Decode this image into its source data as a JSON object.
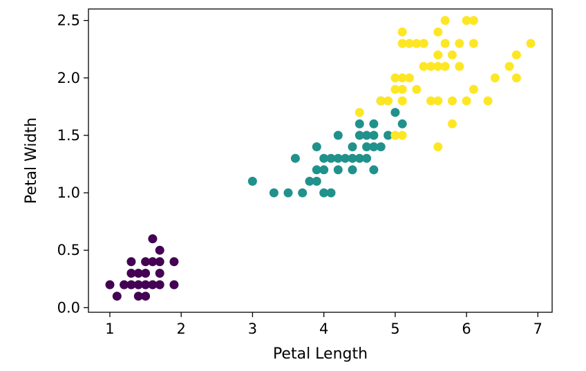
{
  "chart_data": {
    "type": "scatter",
    "title": "",
    "xlabel": "Petal Length",
    "ylabel": "Petal Width",
    "xlim": [
      0.7,
      7.2
    ],
    "ylim": [
      -0.04,
      2.6
    ],
    "x_ticks": [
      1,
      2,
      3,
      4,
      5,
      6,
      7
    ],
    "x_tick_labels": [
      "1",
      "2",
      "3",
      "4",
      "5",
      "6",
      "7"
    ],
    "y_ticks": [
      0.0,
      0.5,
      1.0,
      1.5,
      2.0,
      2.5
    ],
    "y_tick_labels": [
      "0.0",
      "0.5",
      "1.0",
      "1.5",
      "2.0",
      "2.5"
    ],
    "grid": false,
    "legend": "none",
    "series": [
      {
        "color": "#440154",
        "points": [
          [
            1.0,
            0.2
          ],
          [
            1.1,
            0.1
          ],
          [
            1.2,
            0.2
          ],
          [
            1.3,
            0.2
          ],
          [
            1.3,
            0.3
          ],
          [
            1.3,
            0.4
          ],
          [
            1.4,
            0.2
          ],
          [
            1.4,
            0.3
          ],
          [
            1.4,
            0.1
          ],
          [
            1.5,
            0.2
          ],
          [
            1.5,
            0.1
          ],
          [
            1.5,
            0.3
          ],
          [
            1.5,
            0.4
          ],
          [
            1.6,
            0.2
          ],
          [
            1.6,
            0.4
          ],
          [
            1.6,
            0.6
          ],
          [
            1.7,
            0.2
          ],
          [
            1.7,
            0.3
          ],
          [
            1.7,
            0.4
          ],
          [
            1.7,
            0.5
          ],
          [
            1.9,
            0.2
          ],
          [
            1.9,
            0.4
          ]
        ]
      },
      {
        "color": "#21918c",
        "points": [
          [
            3.0,
            1.1
          ],
          [
            3.3,
            1.0
          ],
          [
            3.5,
            1.0
          ],
          [
            3.6,
            1.3
          ],
          [
            3.7,
            1.0
          ],
          [
            3.8,
            1.1
          ],
          [
            3.9,
            1.1
          ],
          [
            3.9,
            1.2
          ],
          [
            3.9,
            1.4
          ],
          [
            4.0,
            1.0
          ],
          [
            4.0,
            1.2
          ],
          [
            4.0,
            1.3
          ],
          [
            4.1,
            1.0
          ],
          [
            4.1,
            1.3
          ],
          [
            4.2,
            1.2
          ],
          [
            4.2,
            1.3
          ],
          [
            4.2,
            1.5
          ],
          [
            4.3,
            1.3
          ],
          [
            4.4,
            1.2
          ],
          [
            4.4,
            1.3
          ],
          [
            4.4,
            1.4
          ],
          [
            4.5,
            1.3
          ],
          [
            4.5,
            1.5
          ],
          [
            4.5,
            1.6
          ],
          [
            4.6,
            1.3
          ],
          [
            4.6,
            1.4
          ],
          [
            4.6,
            1.5
          ],
          [
            4.7,
            1.2
          ],
          [
            4.7,
            1.4
          ],
          [
            4.7,
            1.5
          ],
          [
            4.7,
            1.6
          ],
          [
            4.8,
            1.4
          ],
          [
            4.8,
            1.8
          ],
          [
            4.9,
            1.5
          ],
          [
            5.0,
            1.7
          ],
          [
            5.1,
            1.6
          ]
        ]
      },
      {
        "color": "#fde725",
        "points": [
          [
            4.5,
            1.7
          ],
          [
            4.8,
            1.8
          ],
          [
            4.9,
            1.8
          ],
          [
            5.0,
            1.5
          ],
          [
            5.0,
            1.9
          ],
          [
            5.0,
            2.0
          ],
          [
            5.1,
            1.5
          ],
          [
            5.1,
            1.8
          ],
          [
            5.1,
            1.9
          ],
          [
            5.1,
            2.0
          ],
          [
            5.1,
            2.3
          ],
          [
            5.1,
            2.4
          ],
          [
            5.2,
            2.0
          ],
          [
            5.2,
            2.3
          ],
          [
            5.3,
            1.9
          ],
          [
            5.3,
            2.3
          ],
          [
            5.4,
            2.1
          ],
          [
            5.4,
            2.3
          ],
          [
            5.5,
            1.8
          ],
          [
            5.5,
            2.1
          ],
          [
            5.6,
            1.4
          ],
          [
            5.6,
            1.8
          ],
          [
            5.6,
            2.1
          ],
          [
            5.6,
            2.2
          ],
          [
            5.6,
            2.4
          ],
          [
            5.7,
            2.1
          ],
          [
            5.7,
            2.3
          ],
          [
            5.7,
            2.5
          ],
          [
            5.8,
            1.6
          ],
          [
            5.8,
            1.8
          ],
          [
            5.8,
            2.2
          ],
          [
            5.9,
            2.1
          ],
          [
            5.9,
            2.3
          ],
          [
            6.0,
            1.8
          ],
          [
            6.0,
            2.5
          ],
          [
            6.1,
            1.9
          ],
          [
            6.1,
            2.3
          ],
          [
            6.1,
            2.5
          ],
          [
            6.3,
            1.8
          ],
          [
            6.4,
            2.0
          ],
          [
            6.6,
            2.1
          ],
          [
            6.7,
            2.0
          ],
          [
            6.7,
            2.2
          ],
          [
            6.9,
            2.3
          ]
        ]
      }
    ]
  }
}
